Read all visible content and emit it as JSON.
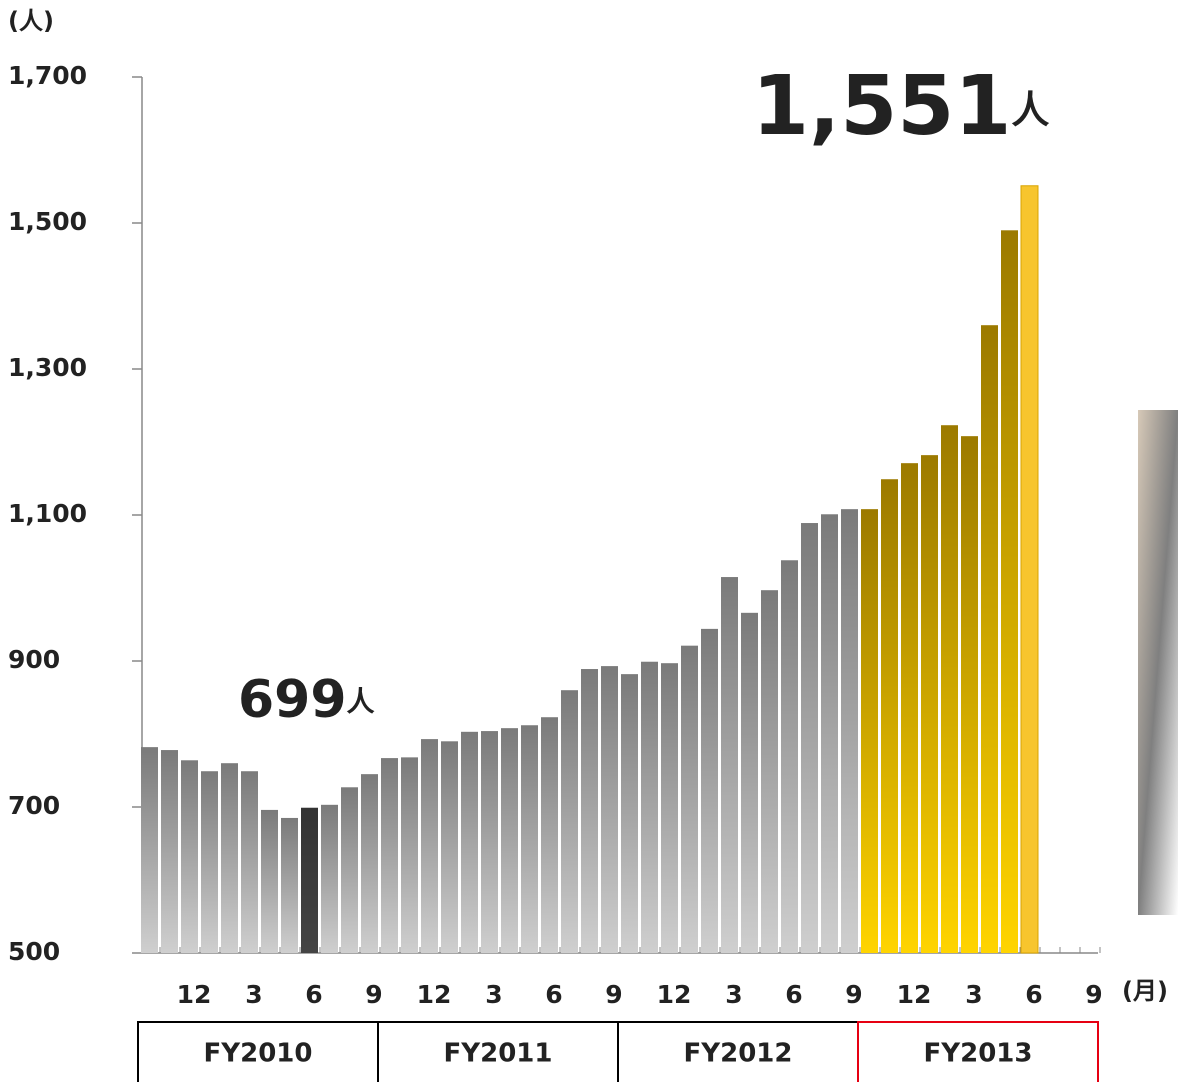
{
  "chart_data": {
    "type": "bar",
    "y_unit": "(人)",
    "x_unit": "(月)",
    "categories": [
      null,
      null,
      "12",
      null,
      null,
      "3",
      null,
      null,
      "6",
      null,
      null,
      "9",
      null,
      null,
      "12",
      null,
      null,
      "3",
      null,
      null,
      "6",
      null,
      null,
      "9",
      null,
      null,
      "12",
      null,
      null,
      "3",
      null,
      null,
      "6",
      null,
      null,
      "9",
      null,
      null,
      "12",
      null,
      null,
      "3",
      null,
      null,
      "6",
      null,
      null,
      "9"
    ],
    "values": [
      782,
      778,
      764,
      749,
      760,
      749,
      696,
      685,
      699,
      703,
      727,
      745,
      767,
      768,
      793,
      790,
      803,
      804,
      808,
      812,
      823,
      860,
      889,
      893,
      882,
      899,
      897,
      921,
      944,
      1015,
      966,
      997,
      1038,
      1089,
      1101,
      1108,
      1108,
      1149,
      1171,
      1182,
      1223,
      1208,
      1360,
      1490,
      1551,
      null,
      null,
      null
    ],
    "colors": [
      "#7a7a7a",
      "#7a7a7a",
      "#7a7a7a",
      "#7a7a7a",
      "#7a7a7a",
      "#7a7a7a",
      "#7a7a7a",
      "#7a7a7a",
      "#333333",
      "#7a7a7a",
      "#7a7a7a",
      "#7a7a7a",
      "#7a7a7a",
      "#7a7a7a",
      "#7a7a7a",
      "#7a7a7a",
      "#7a7a7a",
      "#7a7a7a",
      "#7a7a7a",
      "#7a7a7a",
      "#7a7a7a",
      "#7a7a7a",
      "#7a7a7a",
      "#7a7a7a",
      "#7a7a7a",
      "#7a7a7a",
      "#7a7a7a",
      "#7a7a7a",
      "#7a7a7a",
      "#7a7a7a",
      "#7a7a7a",
      "#7a7a7a",
      "#7a7a7a",
      "#7a7a7a",
      "#7a7a7a",
      "#7a7a7a",
      "#9c7a00",
      "#9c7a00",
      "#9c7a00",
      "#9c7a00",
      "#9c7a00",
      "#9c7a00",
      "#9c7a00",
      "#9c7a00",
      "#f7c52e",
      null,
      null,
      null
    ],
    "ylim": [
      500,
      1700
    ],
    "yticks": [
      500,
      700,
      900,
      {
        "value": 1100,
        "label": "1,100"
      },
      {
        "value": 1300,
        "label": "1,300"
      },
      {
        "value": 1500,
        "label": "1,500"
      },
      {
        "value": 1700,
        "label": "1,700"
      }
    ],
    "fiscal_years": [
      {
        "label": "FY2010",
        "color": "#000000"
      },
      {
        "label": "FY2011",
        "color": "#000000"
      },
      {
        "label": "FY2012",
        "color": "#000000"
      },
      {
        "label": "FY2013",
        "color": "#e60012"
      }
    ],
    "annotations": [
      {
        "value": "1,551",
        "unit": "人",
        "color": "#e8700a"
      },
      {
        "value": "699",
        "unit": "人",
        "color": "#404040"
      }
    ]
  }
}
